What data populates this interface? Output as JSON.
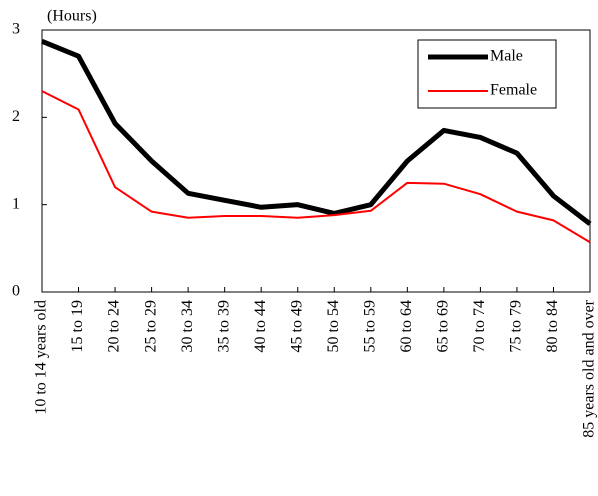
{
  "chart_data": {
    "type": "line",
    "y_label": "(Hours)",
    "categories": [
      "10 to 14 years old",
      "15 to 19",
      "20 to 24",
      "25 to 29",
      "30 to 34",
      "35 to 39",
      "40 to 44",
      "45 to 49",
      "50 to 54",
      "55 to 59",
      "60 to 64",
      "65 to 69",
      "70 to 74",
      "75 to 79",
      "80 to 84",
      "85 years old and over"
    ],
    "series": [
      {
        "name": "Male",
        "color": "#000000",
        "width": 5,
        "values": [
          2.87,
          2.7,
          1.93,
          1.5,
          1.13,
          1.05,
          0.97,
          1.0,
          0.9,
          1.0,
          1.5,
          1.85,
          1.77,
          1.59,
          1.1,
          0.78
        ]
      },
      {
        "name": "Female",
        "color": "#ff0000",
        "width": 2,
        "values": [
          2.3,
          2.09,
          1.2,
          0.92,
          0.85,
          0.87,
          0.87,
          0.85,
          0.88,
          0.93,
          1.25,
          1.24,
          1.12,
          0.92,
          0.82,
          0.57
        ]
      }
    ],
    "ylim": [
      0,
      3
    ],
    "yticks": [
      0,
      1,
      2,
      3
    ],
    "legend": "top-right"
  }
}
